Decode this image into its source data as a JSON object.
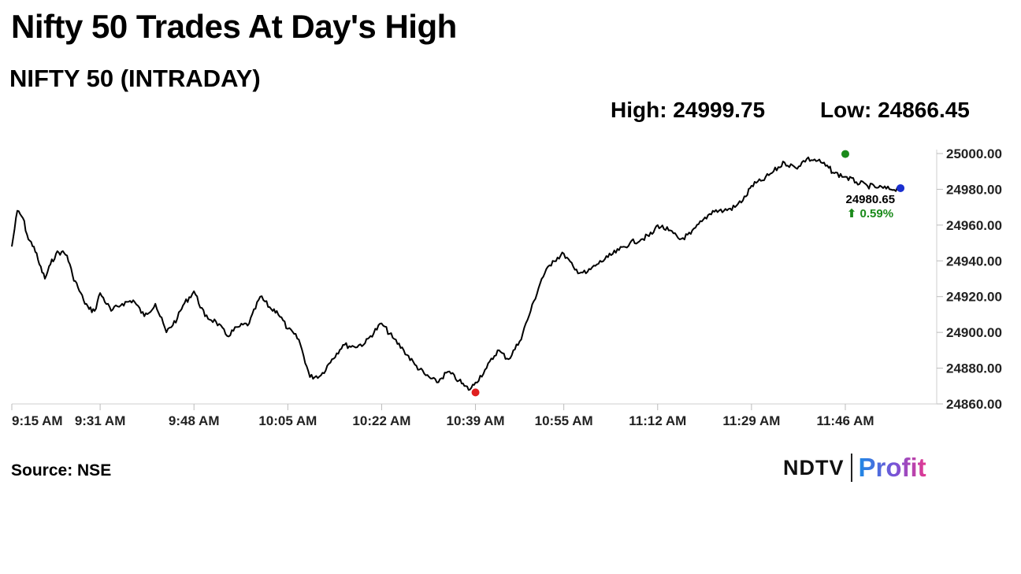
{
  "header": {
    "title": "Nifty 50 Trades At Day's High",
    "subtitle": "NIFTY 50 (INTRADAY)",
    "high_text": "High: 24999.75",
    "low_text": "Low: 24866.45"
  },
  "footer": {
    "source": "Source: NSE",
    "logo_left": "NDTV",
    "logo_right": "Profit"
  },
  "chart_data": {
    "type": "line",
    "title": "NIFTY 50 (INTRADAY)",
    "xlabel": "",
    "ylabel": "",
    "ylim": [
      24860,
      25000
    ],
    "y_ticks": [
      "24860.00",
      "24880.00",
      "24900.00",
      "24920.00",
      "24940.00",
      "24960.00",
      "24980.00",
      "25000.00"
    ],
    "x_ticks": [
      "9:15 AM",
      "9:31 AM",
      "9:48 AM",
      "10:05 AM",
      "10:22 AM",
      "10:39 AM",
      "10:55 AM",
      "11:12 AM",
      "11:29 AM",
      "11:46 AM"
    ],
    "grid": false,
    "line_color": "#000000",
    "series": [
      {
        "x": [
          "9:15 AM",
          "9:16 AM",
          "9:17 AM",
          "9:18 AM",
          "9:19 AM",
          "9:20 AM",
          "9:21 AM",
          "9:22 AM",
          "9:23 AM",
          "9:24 AM",
          "9:25 AM",
          "9:26 AM",
          "9:27 AM",
          "9:28 AM",
          "9:29 AM",
          "9:30 AM",
          "9:31 AM",
          "9:33 AM",
          "9:35 AM",
          "9:37 AM",
          "9:39 AM",
          "9:41 AM",
          "9:43 AM",
          "9:45 AM",
          "9:46 AM",
          "9:48 AM",
          "9:50 AM",
          "9:52 AM",
          "9:54 AM",
          "9:56 AM",
          "9:58 AM",
          "10:00 AM",
          "10:02 AM",
          "10:03 AM",
          "10:05 AM",
          "10:07 AM",
          "10:09 AM",
          "10:11 AM",
          "10:13 AM",
          "10:15 AM",
          "10:17 AM",
          "10:19 AM",
          "10:20 AM",
          "10:22 AM",
          "10:24 AM",
          "10:26 AM",
          "10:28 AM",
          "10:30 AM",
          "10:32 AM",
          "10:34 AM",
          "10:36 AM",
          "10:37 AM",
          "10:38 AM",
          "10:39 AM",
          "10:41 AM",
          "10:43 AM",
          "10:45 AM",
          "10:47 AM",
          "10:49 AM",
          "10:51 AM",
          "10:53 AM",
          "10:55 AM",
          "10:57 AM",
          "10:59 AM",
          "11:01 AM",
          "11:03 AM",
          "11:05 AM",
          "11:07 AM",
          "11:09 AM",
          "11:11 AM",
          "11:12 AM",
          "11:14 AM",
          "11:16 AM",
          "11:18 AM",
          "11:20 AM",
          "11:22 AM",
          "11:24 AM",
          "11:26 AM",
          "11:28 AM",
          "11:29 AM",
          "11:31 AM",
          "11:33 AM",
          "11:35 AM",
          "11:37 AM",
          "11:39 AM",
          "11:41 AM",
          "11:43 AM",
          "11:44 AM",
          "11:46 AM",
          "11:48 AM",
          "11:50 AM",
          "11:52 AM",
          "11:54 AM",
          "11:56 AM"
        ],
        "y": [
          24948,
          24968,
          24964,
          24952,
          24948,
          24938,
          24930,
          24938,
          24944,
          24945,
          24943,
          24932,
          24925,
          24918,
          24913,
          24912,
          24922,
          24912,
          24916,
          24918,
          24909,
          24916,
          24900,
          24908,
          24915,
          24923,
          24909,
          24906,
          24898,
          24903,
          24905,
          24920,
          24913,
          24912,
          24902,
          24896,
          24875,
          24876,
          24885,
          24893,
          24892,
          24894,
          24898,
          24905,
          24897,
          24890,
          24882,
          24876,
          24872,
          24878,
          24873,
          24870,
          24868,
          24872,
          24880,
          24890,
          24885,
          24895,
          24912,
          24930,
          24940,
          24944,
          24935,
          24933,
          24938,
          24942,
          24946,
          24950,
          24952,
          24955,
          24960,
          24957,
          24952,
          24955,
          24962,
          24968,
          24968,
          24970,
          24976,
          24982,
          24985,
          24990,
          24995,
          24992,
          24997,
          24996,
          24992,
          24989,
          24987,
          24984,
          24982,
          24981,
          24980,
          24980.65
        ]
      }
    ],
    "markers": {
      "high": {
        "x": "11:46 AM",
        "y": 24999.75,
        "color": "#1a8a1a"
      },
      "low": {
        "x": "10:39 AM",
        "y": 24866.45,
        "color": "#e02020"
      },
      "last": {
        "x": "11:56 AM",
        "y": 24980.65,
        "color": "#1a2fd0"
      }
    },
    "last_value_label": "24980.65",
    "change_label": "⬆ 0.59%",
    "change_color": "#1a8a1a"
  }
}
